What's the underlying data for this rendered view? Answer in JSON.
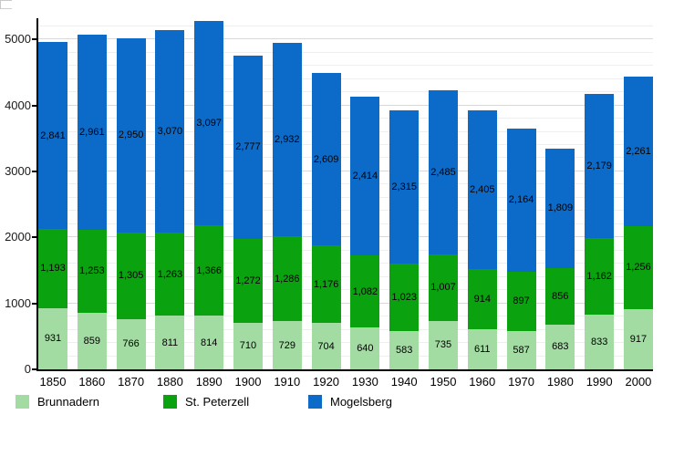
{
  "chart_data": {
    "type": "bar",
    "stacked": true,
    "title": "",
    "xlabel": "",
    "ylabel": "",
    "categories": [
      "1850",
      "1860",
      "1870",
      "1880",
      "1890",
      "1900",
      "1910",
      "1920",
      "1930",
      "1940",
      "1950",
      "1960",
      "1970",
      "1980",
      "1990",
      "2000"
    ],
    "series": [
      {
        "name": "Brunnadern",
        "color": "#A3DCA3",
        "values": [
          931,
          859,
          766,
          811,
          814,
          710,
          729,
          704,
          640,
          583,
          735,
          611,
          587,
          683,
          833,
          917
        ]
      },
      {
        "name": "St. Peterzell",
        "color": "#0AA30F",
        "values": [
          1193,
          1253,
          1305,
          1263,
          1366,
          1272,
          1286,
          1176,
          1082,
          1023,
          1007,
          914,
          897,
          856,
          1162,
          1256
        ]
      },
      {
        "name": "Mogelsberg",
        "color": "#0C6BC9",
        "values": [
          2841,
          2961,
          2950,
          3070,
          3097,
          2777,
          2932,
          2609,
          2414,
          2315,
          2485,
          2405,
          2164,
          1809,
          2179,
          2261
        ]
      }
    ],
    "totals": [
      4965,
      5073,
      5021,
      5144,
      5277,
      4759,
      4947,
      4489,
      4136,
      3921,
      4227,
      3930,
      3648,
      3348,
      4174,
      4434
    ],
    "ylim": [
      0,
      5320
    ],
    "y_ticks": [
      0,
      1000,
      2000,
      3000,
      4000,
      5000
    ],
    "minor_grid_step": 200,
    "grid": true,
    "value_labels": true,
    "legend_position": "bottom",
    "axis_color": "#000000",
    "major_grid_color": "#d9d9d9",
    "minor_grid_color": "#efefef"
  }
}
